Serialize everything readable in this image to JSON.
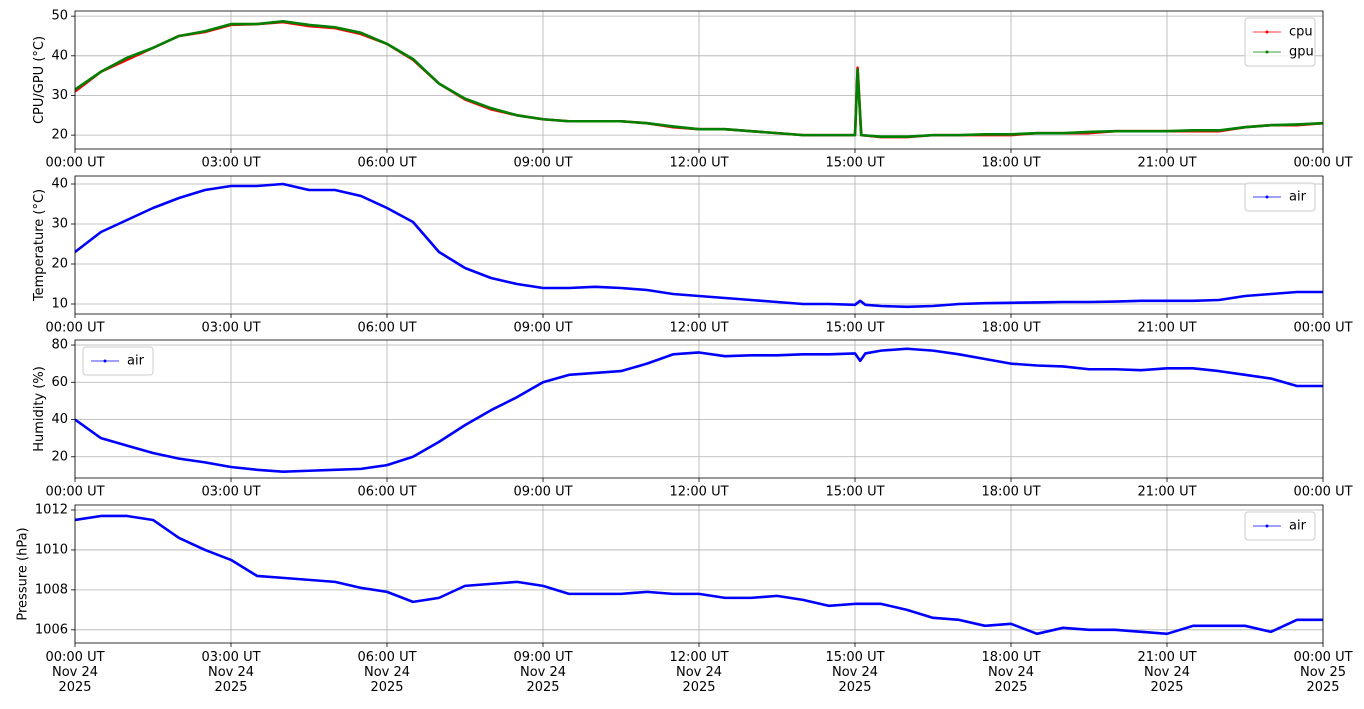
{
  "chart_data": [
    {
      "type": "line",
      "ylabel": "CPU/GPU (°C)",
      "grid": true,
      "legend": "upper right",
      "xlim": [
        0,
        24
      ],
      "ylim": [
        16.5,
        51.3
      ],
      "yticks": [
        20,
        30,
        40,
        50
      ],
      "xticks": [
        {
          "value": 0,
          "label": "00:00 UT"
        },
        {
          "value": 3,
          "label": "03:00 UT"
        },
        {
          "value": 6,
          "label": "06:00 UT"
        },
        {
          "value": 9,
          "label": "09:00 UT"
        },
        {
          "value": 12,
          "label": "12:00 UT"
        },
        {
          "value": 15,
          "label": "15:00 UT"
        },
        {
          "value": 18,
          "label": "18:00 UT"
        },
        {
          "value": 21,
          "label": "21:00 UT"
        },
        {
          "value": 24,
          "label": "00:00 UT"
        }
      ],
      "x": [
        0,
        0.5,
        1,
        1.5,
        2,
        2.5,
        3,
        3.5,
        4,
        4.5,
        5,
        5.5,
        6,
        6.5,
        7,
        7.5,
        8,
        8.5,
        9,
        9.5,
        10,
        10.5,
        11,
        11.5,
        12,
        12.5,
        13,
        13.5,
        14,
        14.5,
        15,
        15.05,
        15.12,
        15.5,
        16,
        16.5,
        17,
        17.5,
        18,
        18.5,
        19,
        19.5,
        20,
        20.5,
        21,
        21.5,
        22,
        22.5,
        23,
        23.5,
        24
      ],
      "series": [
        {
          "name": "cpu",
          "color": "#ff0000",
          "values": [
            31,
            36,
            39,
            42,
            45,
            46,
            47.8,
            48,
            48.5,
            47.5,
            47,
            45.5,
            43,
            39,
            33,
            29,
            26.5,
            25,
            24,
            23.5,
            23.5,
            23.5,
            23,
            22,
            21.5,
            21.5,
            21,
            20.5,
            20,
            20,
            20,
            37,
            20,
            19.5,
            19.5,
            20,
            20,
            20,
            20,
            20.5,
            20.5,
            20.5,
            21,
            21,
            21,
            21,
            21,
            22,
            22.5,
            22.5,
            23
          ]
        },
        {
          "name": "gpu",
          "color": "#008000",
          "values": [
            31.5,
            36,
            39.5,
            42,
            45,
            46.2,
            48,
            48,
            48.7,
            47.8,
            47.2,
            45.8,
            43,
            39.2,
            33,
            29.2,
            26.8,
            25,
            24,
            23.5,
            23.5,
            23.5,
            23,
            22.2,
            21.5,
            21.5,
            21,
            20.5,
            20,
            20,
            20,
            36.5,
            20,
            19.6,
            19.6,
            20,
            20,
            20.2,
            20.2,
            20.5,
            20.5,
            20.8,
            21,
            21,
            21,
            21.2,
            21.2,
            22,
            22.5,
            22.7,
            23
          ]
        }
      ]
    },
    {
      "type": "line",
      "ylabel": "Temperature (°C)",
      "grid": true,
      "legend": "upper right",
      "xlim": [
        0,
        24
      ],
      "ylim": [
        7.5,
        42.0
      ],
      "yticks": [
        10,
        20,
        30,
        40
      ],
      "xticks": [
        {
          "value": 0,
          "label": "00:00 UT"
        },
        {
          "value": 3,
          "label": "03:00 UT"
        },
        {
          "value": 6,
          "label": "06:00 UT"
        },
        {
          "value": 9,
          "label": "09:00 UT"
        },
        {
          "value": 12,
          "label": "12:00 UT"
        },
        {
          "value": 15,
          "label": "15:00 UT"
        },
        {
          "value": 18,
          "label": "18:00 UT"
        },
        {
          "value": 21,
          "label": "21:00 UT"
        },
        {
          "value": 24,
          "label": "00:00 UT"
        }
      ],
      "x": [
        0,
        0.5,
        1,
        1.5,
        2,
        2.5,
        3,
        3.5,
        4,
        4.5,
        5,
        5.5,
        6,
        6.5,
        7,
        7.5,
        8,
        8.5,
        9,
        9.5,
        10,
        10.5,
        11,
        11.5,
        12,
        12.5,
        13,
        13.5,
        14,
        14.5,
        15,
        15.1,
        15.2,
        15.5,
        16,
        16.5,
        17,
        17.5,
        18,
        18.5,
        19,
        19.5,
        20,
        20.5,
        21,
        21.5,
        22,
        22.5,
        23,
        23.5,
        24
      ],
      "series": [
        {
          "name": "air",
          "color": "#0000ff",
          "values": [
            23,
            28,
            31,
            34,
            36.5,
            38.5,
            39.5,
            39.5,
            40,
            38.5,
            38.5,
            37,
            34,
            30.5,
            23,
            19,
            16.5,
            15,
            14,
            14,
            14.3,
            14,
            13.5,
            12.5,
            12,
            11.5,
            11,
            10.5,
            10,
            10,
            9.8,
            10.8,
            9.8,
            9.5,
            9.3,
            9.5,
            10,
            10.2,
            10.3,
            10.4,
            10.5,
            10.5,
            10.6,
            10.8,
            10.8,
            10.8,
            11,
            12,
            12.5,
            13,
            13
          ]
        }
      ]
    },
    {
      "type": "line",
      "ylabel": "Humidity (%)",
      "grid": true,
      "legend": "upper left",
      "xlim": [
        0,
        24
      ],
      "ylim": [
        8.6,
        82.7
      ],
      "yticks": [
        20,
        40,
        60,
        80
      ],
      "xticks": [
        {
          "value": 0,
          "label": "00:00 UT"
        },
        {
          "value": 3,
          "label": "03:00 UT"
        },
        {
          "value": 6,
          "label": "06:00 UT"
        },
        {
          "value": 9,
          "label": "09:00 UT"
        },
        {
          "value": 12,
          "label": "12:00 UT"
        },
        {
          "value": 15,
          "label": "15:00 UT"
        },
        {
          "value": 18,
          "label": "18:00 UT"
        },
        {
          "value": 21,
          "label": "21:00 UT"
        },
        {
          "value": 24,
          "label": "00:00 UT"
        }
      ],
      "x": [
        0,
        0.5,
        1,
        1.5,
        2,
        2.5,
        3,
        3.5,
        4,
        4.5,
        5,
        5.5,
        6,
        6.5,
        7,
        7.5,
        8,
        8.5,
        9,
        9.5,
        10,
        10.5,
        11,
        11.5,
        12,
        12.5,
        13,
        13.5,
        14,
        14.5,
        15,
        15.1,
        15.2,
        15.5,
        16,
        16.5,
        17,
        17.5,
        18,
        18.5,
        19,
        19.5,
        20,
        20.5,
        21,
        21.5,
        22,
        22.5,
        23,
        23.5,
        24
      ],
      "series": [
        {
          "name": "air",
          "color": "#0000ff",
          "values": [
            40,
            30,
            26,
            22,
            19,
            17,
            14.5,
            13,
            12,
            12.5,
            13,
            13.5,
            15.5,
            20,
            28,
            37,
            45,
            52,
            60,
            64,
            65,
            66,
            70,
            75,
            76,
            74,
            74.5,
            74.5,
            75,
            75,
            75.5,
            71.5,
            75.5,
            77,
            78,
            77,
            75,
            72.5,
            70,
            69,
            68.5,
            67,
            67,
            66.5,
            67.5,
            67.5,
            66,
            64,
            62,
            58,
            58
          ]
        }
      ]
    },
    {
      "type": "line",
      "ylabel": "Pressure (hPa)",
      "grid": true,
      "legend": "upper right",
      "xlim": [
        0,
        24
      ],
      "ylim": [
        1005.34,
        1012.25
      ],
      "yticks": [
        1006,
        1008,
        1010,
        1012
      ],
      "xticks": [
        {
          "value": 0,
          "label": "00:00 UT\nNov 24\n2025"
        },
        {
          "value": 3,
          "label": "03:00 UT\nNov 24\n2025"
        },
        {
          "value": 6,
          "label": "06:00 UT\nNov 24\n2025"
        },
        {
          "value": 9,
          "label": "09:00 UT\nNov 24\n2025"
        },
        {
          "value": 12,
          "label": "12:00 UT\nNov 24\n2025"
        },
        {
          "value": 15,
          "label": "15:00 UT\nNov 24\n2025"
        },
        {
          "value": 18,
          "label": "18:00 UT\nNov 24\n2025"
        },
        {
          "value": 21,
          "label": "21:00 UT\nNov 24\n2025"
        },
        {
          "value": 24,
          "label": "00:00 UT\nNov 25\n2025"
        }
      ],
      "x": [
        0,
        0.5,
        1,
        1.5,
        2,
        2.5,
        3,
        3.5,
        4,
        4.5,
        5,
        5.5,
        6,
        6.5,
        7,
        7.5,
        8,
        8.5,
        9,
        9.5,
        10,
        10.5,
        11,
        11.5,
        12,
        12.5,
        13,
        13.5,
        14,
        14.5,
        15,
        15.5,
        16,
        16.5,
        17,
        17.5,
        18,
        18.5,
        19,
        19.5,
        20,
        20.5,
        21,
        21.5,
        22,
        22.5,
        23,
        23.5,
        24
      ],
      "series": [
        {
          "name": "air",
          "color": "#0000ff",
          "values": [
            1011.5,
            1011.7,
            1011.7,
            1011.5,
            1010.6,
            1010.0,
            1009.5,
            1008.7,
            1008.6,
            1008.5,
            1008.4,
            1008.1,
            1007.9,
            1007.4,
            1007.6,
            1008.2,
            1008.3,
            1008.4,
            1008.2,
            1007.8,
            1007.8,
            1007.8,
            1007.9,
            1007.8,
            1007.8,
            1007.6,
            1007.6,
            1007.7,
            1007.5,
            1007.2,
            1007.3,
            1007.3,
            1007.0,
            1006.6,
            1006.5,
            1006.2,
            1006.3,
            1005.8,
            1006.1,
            1006.0,
            1006.0,
            1005.9,
            1005.8,
            1006.2,
            1006.2,
            1006.2,
            1005.9,
            1006.5,
            1006.5
          ]
        }
      ]
    }
  ]
}
